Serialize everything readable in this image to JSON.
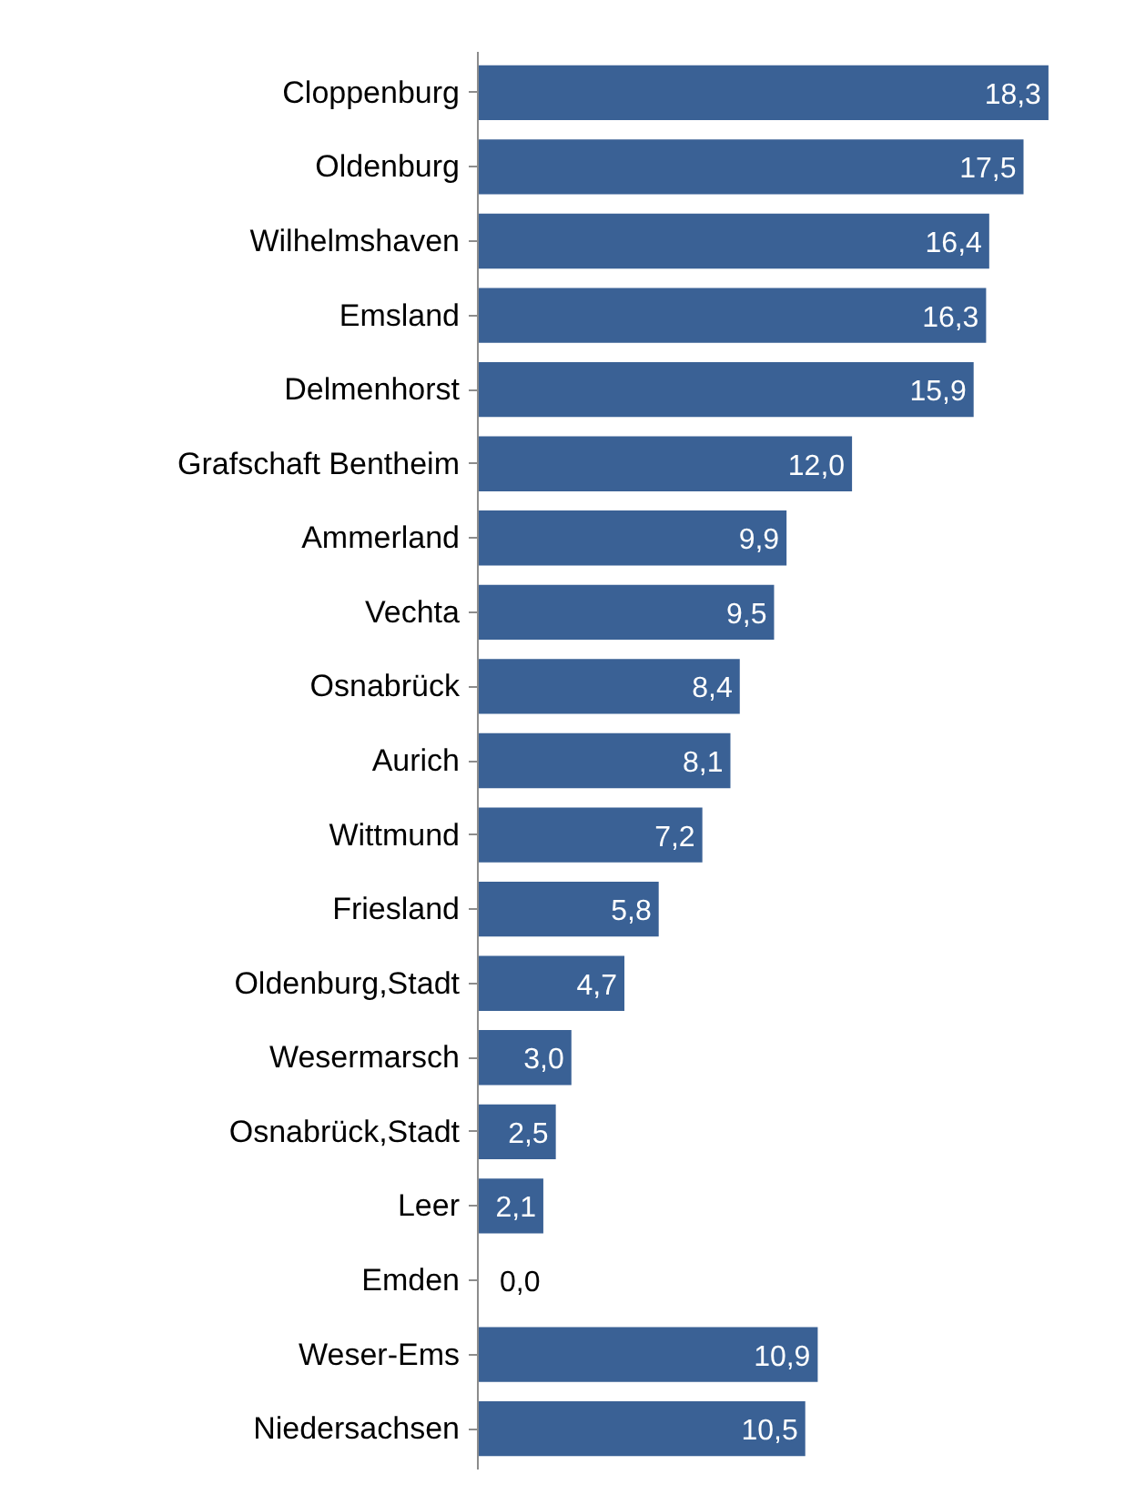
{
  "chart_data": {
    "type": "bar",
    "orientation": "horizontal",
    "value_labels": [
      "18,3",
      "17,5",
      "16,4",
      "16,3",
      "15,9",
      "12,0",
      "9,9",
      "9,5",
      "8,4",
      "8,1",
      "7,2",
      "5,8",
      "4,7",
      "3,0",
      "2,5",
      "2,1",
      "0,0",
      "10,9",
      "10,5"
    ],
    "categories": [
      "Cloppenburg",
      "Oldenburg",
      "Wilhelmshaven",
      "Emsland",
      "Delmenhorst",
      "Grafschaft Bentheim",
      "Ammerland",
      "Vechta",
      "Osnabrück",
      "Aurich",
      "Wittmund",
      "Friesland",
      "Oldenburg,Stadt",
      "Wesermarsch",
      "Osnabrück,Stadt",
      "Leer",
      "Emden",
      "Weser-Ems",
      "Niedersachsen"
    ],
    "values": [
      18.3,
      17.5,
      16.4,
      16.3,
      15.9,
      12.0,
      9.9,
      9.5,
      8.4,
      8.1,
      7.2,
      5.8,
      4.7,
      3.0,
      2.5,
      2.1,
      0.0,
      10.9,
      10.5
    ],
    "color": "#3a6195"
  }
}
